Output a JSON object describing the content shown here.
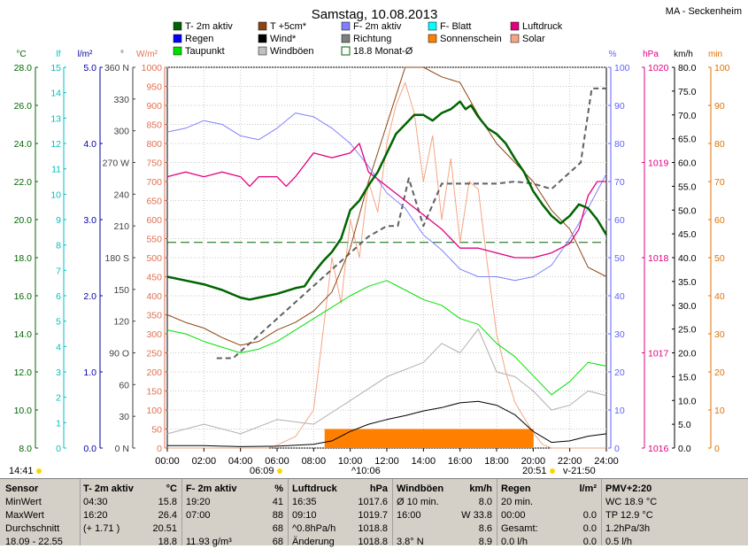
{
  "title": "Samstag, 10.08.2013",
  "station": "MA - Seckenheim",
  "legend": [
    {
      "label": "T- 2m aktiv",
      "color": "#006400",
      "kind": "fill"
    },
    {
      "label": "T +5cm*",
      "color": "#8b4513",
      "kind": "fill"
    },
    {
      "label": "F- 2m aktiv",
      "color": "#8080ff",
      "kind": "fill"
    },
    {
      "label": "F- Blatt",
      "color": "#00ffff",
      "kind": "fill"
    },
    {
      "label": "Luftdruck",
      "color": "#e0007f",
      "kind": "fill"
    },
    {
      "label": "Regen",
      "color": "#0000ff",
      "kind": "fill"
    },
    {
      "label": "Wind*",
      "color": "#000000",
      "kind": "fill"
    },
    {
      "label": "Richtung",
      "color": "#808080",
      "kind": "fill"
    },
    {
      "label": "Sonnenschein",
      "color": "#ff8000",
      "kind": "fill"
    },
    {
      "label": "Solar",
      "color": "#f4a582",
      "kind": "fill"
    },
    {
      "label": "Taupunkt",
      "color": "#00e000",
      "kind": "fill"
    },
    {
      "label": "Windböen",
      "color": "#c0c0c0",
      "kind": "fill"
    },
    {
      "label": "18.8 Monat-Ø",
      "color": "#006400",
      "kind": "outline"
    }
  ],
  "axes": {
    "temp": {
      "unit": "°C",
      "ticks": [
        "28.0",
        "26.0",
        "24.0",
        "22.0",
        "20.0",
        "18.0",
        "16.0",
        "14.0",
        "12.0",
        "10.0",
        "8.0"
      ],
      "color": "#006400"
    },
    "leaf": {
      "unit": "lf",
      "ticks": [
        "15",
        "14",
        "13",
        "12",
        "11",
        "10",
        "9",
        "8",
        "7",
        "6",
        "5",
        "4",
        "3",
        "2",
        "1",
        "0"
      ],
      "color": "#00c0c0"
    },
    "rain": {
      "unit": "l/m²",
      "ticks": [
        "5.0",
        "4.0",
        "3.0",
        "2.0",
        "1.0",
        "0.0"
      ],
      "color": "#0000a0"
    },
    "dir": {
      "unit": "°",
      "ticks": [
        "360 N",
        "330",
        "300",
        "270 W",
        "240",
        "210",
        "180 S",
        "150",
        "120",
        "90 O",
        "60",
        "30",
        "0 N"
      ],
      "color": "#404040"
    },
    "solar": {
      "unit": "W/m²",
      "ticks": [
        "1000",
        "950",
        "900",
        "850",
        "800",
        "750",
        "700",
        "650",
        "600",
        "550",
        "500",
        "450",
        "400",
        "350",
        "300",
        "250",
        "200",
        "150",
        "100",
        "50",
        "0"
      ],
      "color": "#e07050"
    },
    "hum": {
      "unit": "%",
      "ticks": [
        "100",
        "90",
        "80",
        "70",
        "60",
        "50",
        "40",
        "30",
        "20",
        "10",
        "0"
      ],
      "color": "#6060ff"
    },
    "press": {
      "unit": "hPa",
      "ticks": [
        "1020",
        "1019",
        "1018",
        "1017",
        "1016"
      ],
      "color": "#e0007f"
    },
    "wind": {
      "unit": "km/h",
      "ticks": [
        "80.0",
        "75.0",
        "70.0",
        "65.0",
        "60.0",
        "55.0",
        "50.0",
        "45.0",
        "40.0",
        "35.0",
        "30.0",
        "25.0",
        "20.0",
        "15.0",
        "10.0",
        "5.0",
        "0.0"
      ],
      "color": "#000000"
    },
    "min": {
      "unit": "min",
      "ticks": [
        "100",
        "90",
        "80",
        "70",
        "60",
        "50",
        "40",
        "30",
        "20",
        "10",
        "0"
      ],
      "color": "#e07000"
    },
    "time": [
      "00:00",
      "02:00",
      "04:00",
      "06:00",
      "08:00",
      "10:00",
      "12:00",
      "14:00",
      "16:00",
      "18:00",
      "20:00",
      "22:00",
      "24:00"
    ]
  },
  "events": {
    "sunrise": "06:09",
    "solar_noon": "^10:06",
    "sunset": "20:51",
    "moon": "v-21:50",
    "daylength": "14:41"
  },
  "chart_data": {
    "type": "line",
    "title": "Samstag, 10.08.2013",
    "x_unit": "hours",
    "ylim_temp": [
      8,
      28
    ],
    "series": [
      {
        "name": "T- 2m aktiv",
        "axis": "°C",
        "x": [
          0,
          1,
          2,
          3,
          4,
          4.5,
          5,
          6,
          7,
          7.5,
          8,
          8.5,
          9,
          9.5,
          10,
          10.5,
          11,
          11.5,
          12,
          12.5,
          13,
          13.5,
          14,
          14.5,
          15,
          15.5,
          16,
          16.3,
          16.6,
          17,
          17.5,
          18,
          18.5,
          19,
          19.5,
          20,
          20.5,
          21,
          21.5,
          22,
          22.5,
          23,
          23.5,
          24
        ],
        "values": [
          17.0,
          16.8,
          16.6,
          16.3,
          15.9,
          15.8,
          15.9,
          16.1,
          16.4,
          16.5,
          17.2,
          17.8,
          18.3,
          19.0,
          20.5,
          21.0,
          21.8,
          22.5,
          23.5,
          24.5,
          25.0,
          25.5,
          25.5,
          25.2,
          25.6,
          25.8,
          26.2,
          25.8,
          26.0,
          25.4,
          24.8,
          24.5,
          24.0,
          23.2,
          22.5,
          21.5,
          20.8,
          20.2,
          19.8,
          20.2,
          20.8,
          20.6,
          20.0,
          19.2
        ]
      },
      {
        "name": "T +5cm*",
        "axis": "°C",
        "x": [
          0,
          1,
          2,
          3,
          4,
          5,
          6,
          7,
          8,
          9,
          10,
          11,
          12,
          12.5,
          13,
          14,
          15,
          16,
          17,
          18,
          19,
          20,
          21,
          22,
          22.5,
          23,
          24
        ],
        "values": [
          15.0,
          14.6,
          14.3,
          13.8,
          13.4,
          13.6,
          14.2,
          14.6,
          15.2,
          16.2,
          18.5,
          22.0,
          25.0,
          26.5,
          28.0,
          28.0,
          27.5,
          27.2,
          25.5,
          24.0,
          23.0,
          22.0,
          20.5,
          19.5,
          18.5,
          17.5,
          17.0
        ]
      },
      {
        "name": "Taupunkt",
        "axis": "°C",
        "x": [
          0,
          1,
          2,
          3,
          4,
          5,
          6,
          7,
          8,
          9,
          10,
          11,
          12,
          13,
          14,
          15,
          16,
          17,
          18,
          19,
          20,
          21,
          22,
          23,
          24
        ],
        "values": [
          14.2,
          14.0,
          13.6,
          13.3,
          13.0,
          13.2,
          13.6,
          14.2,
          14.8,
          15.4,
          16.0,
          16.5,
          16.8,
          16.3,
          15.8,
          15.5,
          14.8,
          14.5,
          13.5,
          12.8,
          11.8,
          10.8,
          11.5,
          12.5,
          12.3
        ]
      },
      {
        "name": "F- 2m aktiv",
        "axis": "%",
        "x": [
          0,
          1,
          2,
          3,
          4,
          5,
          6,
          7,
          8,
          9,
          10,
          11,
          12,
          13,
          14,
          15,
          16,
          17,
          18,
          19,
          20,
          21,
          22,
          23,
          24
        ],
        "values": [
          83,
          84,
          86,
          85,
          82,
          81,
          84,
          88,
          87,
          84,
          80,
          74,
          67,
          63,
          56,
          52,
          47,
          45,
          45,
          44,
          45,
          48,
          55,
          63,
          72
        ]
      },
      {
        "name": "Luftdruck",
        "axis": "hPa",
        "x": [
          0,
          1,
          2,
          3,
          4,
          4.5,
          5,
          6,
          6.5,
          7,
          8,
          9,
          10,
          10.5,
          11,
          12,
          13,
          14,
          15,
          16,
          17,
          18,
          19,
          20,
          21,
          22,
          22.5,
          23,
          23.5,
          24
        ],
        "values": [
          1018.85,
          1018.9,
          1018.85,
          1018.9,
          1018.85,
          1018.75,
          1018.85,
          1018.85,
          1018.75,
          1018.85,
          1019.1,
          1019.05,
          1019.1,
          1019.2,
          1018.9,
          1018.75,
          1018.6,
          1018.45,
          1018.3,
          1018.1,
          1018.1,
          1018.05,
          1018.0,
          1018.0,
          1018.05,
          1018.15,
          1018.3,
          1018.65,
          1018.8,
          1018.8
        ]
      },
      {
        "name": "Wind*",
        "axis": "km/h",
        "x": [
          0,
          2,
          4,
          6,
          8,
          9,
          10,
          11,
          12,
          13,
          14,
          15,
          16,
          17,
          18,
          19,
          20,
          21,
          22,
          23,
          24
        ],
        "values": [
          0.5,
          0.5,
          0.3,
          0.4,
          0.8,
          1.5,
          3.5,
          5.0,
          6.0,
          6.8,
          7.8,
          8.5,
          9.5,
          9.8,
          9.0,
          7.0,
          3.5,
          1.2,
          1.5,
          2.5,
          3.0
        ]
      },
      {
        "name": "Windböen",
        "axis": "km/h",
        "x": [
          0,
          2,
          4,
          6,
          8,
          10,
          12,
          14,
          15,
          16,
          17,
          18,
          19,
          20,
          21,
          22,
          23,
          24
        ],
        "values": [
          3,
          5,
          3,
          6,
          5,
          10,
          15,
          18,
          22,
          20,
          25,
          16,
          15,
          12,
          8,
          9,
          12,
          11
        ]
      },
      {
        "name": "Solar",
        "axis": "W/m²",
        "x": [
          0,
          5.5,
          6,
          7,
          8,
          8.5,
          9,
          9.5,
          10,
          10.5,
          11,
          11.5,
          12,
          12.5,
          13,
          13.5,
          14,
          14.5,
          15,
          15.5,
          16,
          16.5,
          17,
          17.5,
          18,
          18.5,
          19,
          19.5,
          20,
          20.5,
          21,
          24
        ],
        "values": [
          0,
          0,
          8,
          30,
          100,
          300,
          500,
          380,
          600,
          500,
          700,
          620,
          800,
          900,
          960,
          880,
          700,
          820,
          600,
          760,
          540,
          700,
          680,
          480,
          300,
          200,
          120,
          80,
          40,
          10,
          0,
          0
        ]
      },
      {
        "name": "Richtung",
        "axis": "°",
        "x": [
          2.7,
          3.6,
          11,
          12,
          12.6,
          13.2,
          14,
          15,
          16,
          18,
          19,
          20,
          21,
          22.6,
          23.2,
          24
        ],
        "values": [
          85,
          85,
          200,
          210,
          210,
          255,
          210,
          250,
          250,
          250,
          252,
          250,
          245,
          270,
          340,
          340
        ]
      }
    ],
    "sunshine_bars": {
      "axis": "min",
      "x": [
        8.6,
        9,
        9.5,
        10,
        10.5,
        11,
        11.5,
        12,
        12.5,
        13,
        13.5,
        14,
        14.5,
        15,
        15.5,
        16,
        16.5,
        17,
        17.5,
        18,
        18.5,
        19,
        19.5
      ],
      "values": [
        5,
        5,
        5,
        5,
        5,
        5,
        5,
        5,
        5,
        5,
        5,
        5,
        5,
        5,
        5,
        5,
        5,
        5,
        5,
        5,
        5,
        5,
        5
      ]
    },
    "monthly_mean_temp": 18.8
  },
  "table": {
    "columns": [
      {
        "header": [
          "Sensor",
          ""
        ],
        "rows": [
          [
            "MinWert",
            ""
          ],
          [
            "MaxWert",
            ""
          ],
          [
            "Durchschnitt",
            ""
          ],
          [
            "18.09 - 22.55",
            ""
          ]
        ]
      },
      {
        "header": [
          "T- 2m aktiv",
          "°C"
        ],
        "rows": [
          [
            "04:30",
            "15.8"
          ],
          [
            "16:20",
            "26.4"
          ],
          [
            "(+ 1.71 )",
            "20.51"
          ],
          [
            "",
            "18.8"
          ]
        ]
      },
      {
        "header": [
          "F- 2m aktiv",
          "%"
        ],
        "rows": [
          [
            "19:20",
            "41"
          ],
          [
            "07:00",
            "88"
          ],
          [
            "",
            "68"
          ],
          [
            "11.93 g/m³",
            "68"
          ]
        ]
      },
      {
        "header": [
          "Luftdruck",
          "hPa"
        ],
        "rows": [
          [
            "16:35",
            "1017.6"
          ],
          [
            "09:10",
            "1019.7"
          ],
          [
            "^0.8hPa/h",
            "1018.8"
          ],
          [
            "Änderung",
            "1018.8"
          ]
        ]
      },
      {
        "header": [
          "Windböen",
          "km/h"
        ],
        "rows": [
          [
            "Ø 10 min.",
            "8.0"
          ],
          [
            "16:00",
            "W 33.8"
          ],
          [
            "",
            "8.6"
          ],
          [
            "3.8° N",
            "8.9"
          ]
        ]
      },
      {
        "header": [
          "Regen",
          "l/m²"
        ],
        "rows": [
          [
            "20 min.",
            ""
          ],
          [
            "00:00",
            "0.0"
          ],
          [
            "Gesamt:",
            "0.0"
          ],
          [
            "0.0 l/h",
            "0.0"
          ]
        ]
      },
      {
        "header": [
          "PMV+2:20",
          ""
        ],
        "rows": [
          [
            "WC 18.9 °C",
            ""
          ],
          [
            "TP 12.9 °C",
            ""
          ],
          [
            "1.2hPa/3h",
            ""
          ],
          [
            "0.5 l/h",
            ""
          ]
        ]
      }
    ]
  }
}
